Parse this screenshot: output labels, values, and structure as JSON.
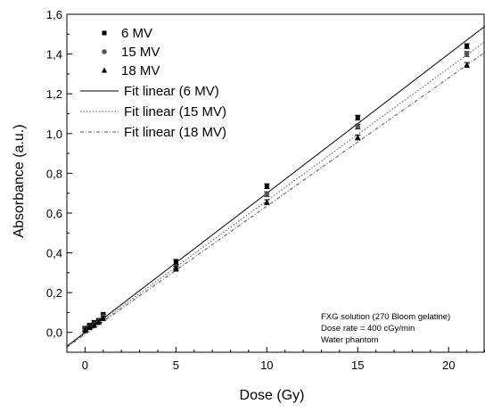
{
  "chart_data": {
    "type": "scatter",
    "xlabel": "Dose (Gy)",
    "ylabel": "Absorbance (a.u.)",
    "xlim": [
      -1,
      22
    ],
    "ylim": [
      -0.1,
      1.6
    ],
    "x_ticks": [
      0,
      5,
      10,
      15,
      20
    ],
    "x_tick_labels": [
      "0",
      "5",
      "10",
      "15",
      "20"
    ],
    "y_ticks": [
      0.0,
      0.2,
      0.4,
      0.6,
      0.8,
      1.0,
      1.2,
      1.4,
      1.6
    ],
    "y_tick_labels": [
      "0,0",
      "0,2",
      "0,4",
      "0,6",
      "0,8",
      "1,0",
      "1,2",
      "1,4",
      "1,6"
    ],
    "grid": false,
    "legend_position": "top-left",
    "series": [
      {
        "name": "6 MV",
        "marker": "square",
        "x": [
          0,
          0.25,
          0.5,
          0.75,
          1,
          5,
          10,
          15,
          21
        ],
        "y": [
          0.02,
          0.035,
          0.05,
          0.06,
          0.09,
          0.355,
          0.735,
          1.08,
          1.44
        ],
        "error": [
          0.01,
          0.01,
          0.01,
          0.01,
          0.01,
          0.012,
          0.012,
          0.012,
          0.012
        ]
      },
      {
        "name": "15 MV",
        "marker": "circle",
        "x": [
          0,
          0.25,
          0.5,
          0.75,
          1,
          5,
          10,
          15,
          21
        ],
        "y": [
          0.015,
          0.03,
          0.04,
          0.055,
          0.08,
          0.33,
          0.695,
          1.035,
          1.4
        ],
        "error": [
          0.01,
          0.01,
          0.01,
          0.01,
          0.01,
          0.012,
          0.012,
          0.012,
          0.012
        ]
      },
      {
        "name": "18 MV",
        "marker": "triangle",
        "x": [
          0,
          0.25,
          0.5,
          0.75,
          1,
          5,
          10,
          15,
          21
        ],
        "y": [
          0.01,
          0.025,
          0.035,
          0.05,
          0.07,
          0.32,
          0.655,
          0.98,
          1.345
        ],
        "error": [
          0.01,
          0.01,
          0.01,
          0.01,
          0.01,
          0.012,
          0.012,
          0.012,
          0.012
        ]
      }
    ],
    "fits": [
      {
        "name": "Fit linear (6 MV)",
        "style": "solid",
        "intercept": 0.0,
        "slope": 0.07
      },
      {
        "name": "Fit linear (15 MV)",
        "style": "dotted",
        "intercept": -0.005,
        "slope": 0.0667
      },
      {
        "name": "Fit linear (18 MV)",
        "style": "dashdot",
        "intercept": -0.01,
        "slope": 0.0645
      }
    ],
    "annotation": [
      "FXG solution (270 Bloom gelatine)",
      "Dose rate = 400 cGy/min",
      "Water phantom"
    ]
  }
}
